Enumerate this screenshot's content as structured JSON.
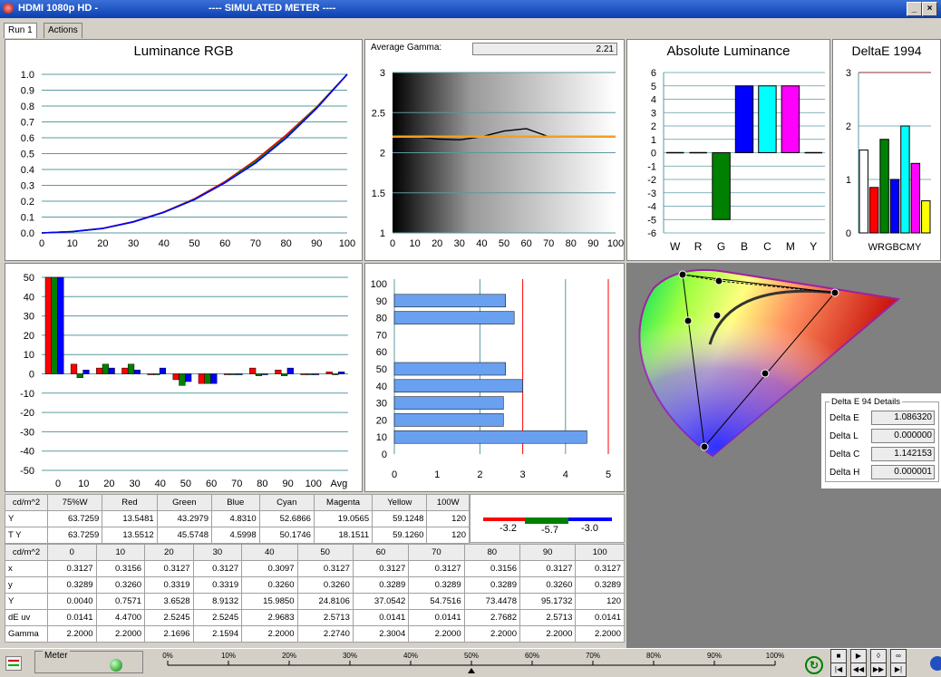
{
  "window": {
    "title": "HDMI 1080p HD   -",
    "subtitle": "----  SIMULATED METER  ----",
    "min": "_",
    "max": "×"
  },
  "tabs": [
    {
      "label": "Run 1"
    },
    {
      "label": "Actions"
    }
  ],
  "lum_rgb": {
    "title": "Luminance RGB",
    "x_ticks": [
      "0",
      "10",
      "20",
      "30",
      "40",
      "50",
      "60",
      "70",
      "80",
      "90",
      "100"
    ],
    "y_ticks": [
      "0.0",
      "0.1",
      "0.2",
      "0.3",
      "0.4",
      "0.5",
      "0.6",
      "0.7",
      "0.8",
      "0.9",
      "1.0"
    ]
  },
  "gamma_panel": {
    "label": "Average Gamma:",
    "value": "2.21",
    "x_ticks": [
      "0",
      "10",
      "20",
      "30",
      "40",
      "50",
      "60",
      "70",
      "80",
      "90",
      "100"
    ],
    "y_ticks": [
      "1",
      "1.5",
      "2",
      "2.5",
      "3"
    ]
  },
  "abs_lum": {
    "title": "Absolute Luminance",
    "x_labels": [
      "W",
      "R",
      "G",
      "B",
      "C",
      "M",
      "Y"
    ],
    "y_ticks": [
      "6",
      "5",
      "4",
      "3",
      "2",
      "1",
      "0",
      "-1",
      "-2",
      "-3",
      "-4",
      "-5",
      "-6"
    ]
  },
  "delta_e_1994": {
    "title": "DeltaE 1994",
    "x_label": "WRGBCMY",
    "y_ticks": [
      "3",
      "2",
      "1",
      "0"
    ]
  },
  "rgb_balance": {
    "x_ticks": [
      "0",
      "10",
      "20",
      "30",
      "40",
      "50",
      "60",
      "70",
      "80",
      "90",
      "100",
      "Avg"
    ],
    "y_ticks": [
      "50",
      "40",
      "30",
      "20",
      "10",
      "0",
      "-10",
      "-20",
      "-30",
      "-40",
      "-50"
    ]
  },
  "delta_bars": {
    "y_ticks": [
      "100",
      "90",
      "80",
      "70",
      "60",
      "50",
      "40",
      "30",
      "20",
      "10",
      "0"
    ],
    "x_ticks": [
      "0",
      "1",
      "2",
      "3",
      "4",
      "5"
    ]
  },
  "chart_data": [
    {
      "type": "line",
      "title": "Luminance RGB",
      "x": [
        0,
        10,
        20,
        30,
        40,
        50,
        60,
        70,
        80,
        90,
        100
      ],
      "ylim": [
        0,
        1
      ],
      "series": [
        {
          "color": "#ff0000",
          "values": [
            0.0,
            0.008,
            0.029,
            0.071,
            0.132,
            0.215,
            0.324,
            0.459,
            0.617,
            0.794,
            1.0
          ]
        },
        {
          "color": "#008000",
          "values": [
            0.0,
            0.008,
            0.028,
            0.07,
            0.13,
            0.212,
            0.318,
            0.451,
            0.606,
            0.79,
            1.0
          ]
        },
        {
          "color": "#0000ff",
          "values": [
            0.0,
            0.008,
            0.028,
            0.069,
            0.13,
            0.21,
            0.316,
            0.44,
            0.598,
            0.785,
            1.0
          ]
        }
      ]
    },
    {
      "type": "line",
      "x": [
        10,
        20,
        30,
        40,
        50,
        60,
        70,
        80,
        90,
        100
      ],
      "ylim": [
        1,
        3
      ],
      "series": [
        {
          "color": "#000000",
          "values": [
            2.2,
            2.17,
            2.16,
            2.2,
            2.27,
            2.3,
            2.2,
            2.2,
            2.2,
            2.2
          ]
        },
        {
          "color": "#f0a020",
          "values": [
            2.2,
            2.2,
            2.2,
            2.2,
            2.2,
            2.2,
            2.2,
            2.2,
            2.2,
            2.2
          ]
        }
      ]
    },
    {
      "type": "bar",
      "title": "Absolute Luminance",
      "categories": [
        "W",
        "R",
        "G",
        "B",
        "C",
        "M",
        "Y"
      ],
      "values": [
        0,
        0,
        -5,
        5,
        5,
        5,
        0
      ],
      "colors": [
        "#000000",
        "#ff0000",
        "#008000",
        "#0000ff",
        "#00ffff",
        "#ff00ff",
        "#ffff00"
      ],
      "ylim": [
        -6,
        6
      ]
    },
    {
      "type": "bar",
      "title": "DeltaE 1994",
      "categories": [
        "W",
        "R",
        "G",
        "B",
        "C",
        "M",
        "Y"
      ],
      "values": [
        1.55,
        0.85,
        1.75,
        1.0,
        2.0,
        1.3,
        0.6
      ],
      "colors": [
        "#ffffff",
        "#ff0000",
        "#008000",
        "#0000ff",
        "#00ffff",
        "#ff00ff",
        "#ffff00"
      ],
      "ylim": [
        0,
        3
      ]
    },
    {
      "type": "bar",
      "categories": [
        "0",
        "10",
        "20",
        "30",
        "40",
        "50",
        "60",
        "70",
        "80",
        "90",
        "100",
        "Avg"
      ],
      "ylim": [
        -50,
        50
      ],
      "series": [
        {
          "color": "#ff0000",
          "values": [
            50,
            5,
            3,
            3,
            0,
            -3,
            -5,
            0,
            3,
            2,
            0,
            1
          ]
        },
        {
          "color": "#008000",
          "values": [
            50,
            -2,
            5,
            5,
            0,
            -6,
            -5,
            0,
            -1,
            -1,
            0,
            0
          ]
        },
        {
          "color": "#0000ff",
          "values": [
            50,
            2,
            3,
            2,
            3,
            -4,
            -5,
            0,
            0,
            3,
            0,
            1
          ]
        }
      ]
    },
    {
      "type": "bar",
      "orientation": "horizontal",
      "categories": [
        "10",
        "20",
        "30",
        "40",
        "50",
        "80",
        "90"
      ],
      "values": [
        4.5,
        2.55,
        2.55,
        3.0,
        2.6,
        2.8,
        2.6
      ],
      "xlim": [
        0,
        5
      ]
    }
  ],
  "table1": {
    "header": [
      "cd/m^2",
      "75%W",
      "Red",
      "Green",
      "Blue",
      "Cyan",
      "Magenta",
      "Yellow",
      "100W"
    ],
    "rows": [
      [
        "Y",
        "63.7259",
        "13.5481",
        "43.2979",
        "4.8310",
        "52.6866",
        "19.0565",
        "59.1248",
        "120"
      ],
      [
        "T Y",
        "63.7259",
        "13.5512",
        "45.5748",
        "4.5998",
        "50.1746",
        "18.1511",
        "59.1260",
        "120"
      ]
    ]
  },
  "rgb_strip": {
    "values": [
      "-3.2",
      "-5.7",
      "-3.0"
    ]
  },
  "table2": {
    "header": [
      "cd/m^2",
      "0",
      "10",
      "20",
      "30",
      "40",
      "50",
      "60",
      "70",
      "80",
      "90",
      "100"
    ],
    "rows": [
      [
        "x",
        "0.3127",
        "0.3156",
        "0.3127",
        "0.3127",
        "0.3097",
        "0.3127",
        "0.3127",
        "0.3127",
        "0.3156",
        "0.3127",
        "0.3127"
      ],
      [
        "y",
        "0.3289",
        "0.3260",
        "0.3319",
        "0.3319",
        "0.3260",
        "0.3260",
        "0.3289",
        "0.3289",
        "0.3289",
        "0.3260",
        "0.3289"
      ],
      [
        "Y",
        "0.0040",
        "0.7571",
        "3.6528",
        "8.9132",
        "15.9850",
        "24.8106",
        "37.0542",
        "54.7516",
        "73.4478",
        "95.1732",
        "120"
      ],
      [
        "dE uv",
        "0.0141",
        "4.4700",
        "2.5245",
        "2.5245",
        "2.9683",
        "2.5713",
        "0.0141",
        "0.0141",
        "2.7682",
        "2.5713",
        "0.0141"
      ],
      [
        "Gamma",
        "2.2000",
        "2.2000",
        "2.1696",
        "2.1594",
        "2.2000",
        "2.2740",
        "2.3004",
        "2.2000",
        "2.2000",
        "2.2000",
        "2.2000"
      ]
    ]
  },
  "delta_details": {
    "legend": "Delta E 94 Details",
    "rows": [
      {
        "label": "Delta E",
        "value": "1.086320"
      },
      {
        "label": "Delta L",
        "value": "0.000000"
      },
      {
        "label": "Delta C",
        "value": "1.142153"
      },
      {
        "label": "Delta H",
        "value": "0.000001"
      }
    ]
  },
  "status": {
    "meter_label": "Meter",
    "slider_ticks": [
      "0%",
      "10%",
      "20%",
      "30%",
      "40%",
      "50%",
      "60%",
      "70%",
      "80%",
      "90%",
      "100%"
    ],
    "slider_value": 0.5
  },
  "colors": {
    "grid": "#5a9aa0",
    "hbar": "#6aa0f0"
  }
}
